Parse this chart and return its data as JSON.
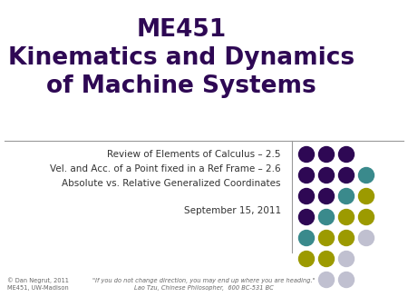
{
  "title_line1": "ME451",
  "title_line2": "Kinematics and Dynamics",
  "title_line3": "of Machine Systems",
  "title_color": "#2E0854",
  "subtitle_lines": [
    "Review of Elements of Calculus – 2.5",
    "Vel. and Acc. of a Point fixed in a Ref Frame – 2.6",
    "Absolute vs. Relative Generalized Coordinates"
  ],
  "date_line": "September 15, 2011",
  "footer_left_line1": "© Dan Negrut, 2011",
  "footer_left_line2": "ME451, UW-Madison",
  "footer_quote": "\"If you do not change direction, you may end up where you are heading.\"",
  "footer_author": "Lao Tzu, Chinese Philosopher,  600 BC-531 BC",
  "bg_color": "#FFFFFF",
  "line_color": "#999999",
  "subtitle_color": "#333333",
  "footer_color": "#666666",
  "dot_colors": {
    "purple": "#2E0854",
    "teal": "#3A8A8C",
    "yellow": "#9C9A00",
    "light": "#C0C0D0"
  },
  "dot_pattern": [
    [
      "purple",
      "purple",
      "purple",
      ""
    ],
    [
      "purple",
      "purple",
      "purple",
      "teal"
    ],
    [
      "purple",
      "purple",
      "teal",
      "yellow"
    ],
    [
      "purple",
      "teal",
      "yellow",
      "yellow"
    ],
    [
      "teal",
      "yellow",
      "yellow",
      "light"
    ],
    [
      "yellow",
      "yellow",
      "light",
      ""
    ],
    [
      "",
      "light",
      "light",
      ""
    ]
  ]
}
